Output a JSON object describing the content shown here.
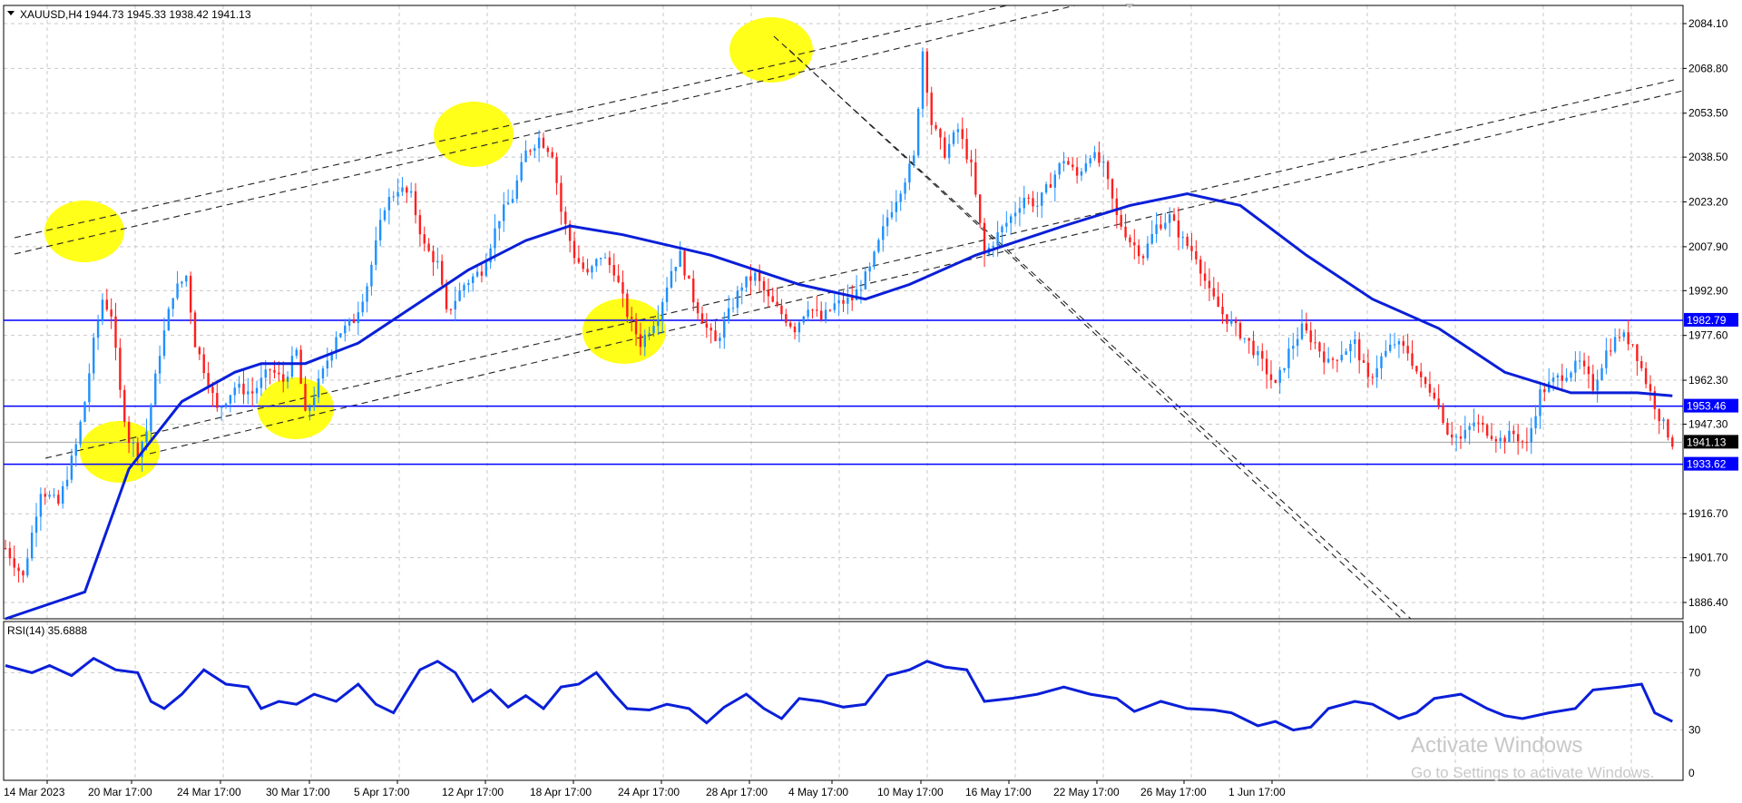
{
  "chart_data": {
    "type": "candlestick",
    "symbol_header": "XAUUSD,H4",
    "ohlc_header": "1944.73 1945.33 1938.42 1941.13",
    "ylim": [
      1880,
      2090
    ],
    "y_ticks": [
      2084.1,
      2068.8,
      2053.5,
      2038.5,
      2023.2,
      2007.9,
      1992.9,
      1977.6,
      1962.3,
      1947.3,
      1916.7,
      1901.7,
      1886.4
    ],
    "x_ticks": [
      "14 Mar 2023",
      "20 Mar 17:00",
      "24 Mar 17:00",
      "30 Mar 17:00",
      "5 Apr 17:00",
      "12 Apr 17:00",
      "18 Apr 17:00",
      "24 Apr 17:00",
      "28 Apr 17:00",
      "4 May 17:00",
      "10 May 17:00",
      "16 May 17:00",
      "22 May 17:00",
      "26 May 17:00",
      "1 Jun 17:00"
    ],
    "price_lines": [
      {
        "value": 1982.79,
        "label": "1982.79",
        "color": "#0000ff"
      },
      {
        "value": 1953.46,
        "label": "1953.46",
        "color": "#0000ff"
      },
      {
        "value": 1933.62,
        "label": "1933.62",
        "color": "#0000ff"
      }
    ],
    "current_price": {
      "value": 1941.13,
      "label": "1941.13"
    },
    "close_path": [
      [
        0,
        1905
      ],
      [
        4,
        1895
      ],
      [
        8,
        1925
      ],
      [
        12,
        1920
      ],
      [
        16,
        1940
      ],
      [
        18,
        1955
      ],
      [
        20,
        1975
      ],
      [
        22,
        1990
      ],
      [
        24,
        1985
      ],
      [
        26,
        1958
      ],
      [
        28,
        1942
      ],
      [
        30,
        1938
      ],
      [
        32,
        1945
      ],
      [
        35,
        1972
      ],
      [
        38,
        1992
      ],
      [
        41,
        1998
      ],
      [
        43,
        1975
      ],
      [
        46,
        1962
      ],
      [
        48,
        1952
      ],
      [
        52,
        1960
      ],
      [
        56,
        1958
      ],
      [
        60,
        1966
      ],
      [
        63,
        1962
      ],
      [
        66,
        1972
      ],
      [
        68,
        1950
      ],
      [
        72,
        1965
      ],
      [
        75,
        1978
      ],
      [
        77,
        1980
      ],
      [
        79,
        1983
      ],
      [
        82,
        1995
      ],
      [
        86,
        2022
      ],
      [
        89,
        2028
      ],
      [
        92,
        2025
      ],
      [
        95,
        2008
      ],
      [
        98,
        2002
      ],
      [
        100,
        1985
      ],
      [
        104,
        1995
      ],
      [
        108,
        2000
      ],
      [
        112,
        2018
      ],
      [
        115,
        2025
      ],
      [
        118,
        2040
      ],
      [
        121,
        2045
      ],
      [
        124,
        2040
      ],
      [
        126,
        2020
      ],
      [
        129,
        2005
      ],
      [
        132,
        1998
      ],
      [
        135,
        2005
      ],
      [
        138,
        2000
      ],
      [
        141,
        1985
      ],
      [
        144,
        1975
      ],
      [
        148,
        1985
      ],
      [
        151,
        2000
      ],
      [
        153,
        2005
      ],
      [
        156,
        1990
      ],
      [
        159,
        1980
      ],
      [
        161,
        1975
      ],
      [
        164,
        1985
      ],
      [
        167,
        1995
      ],
      [
        170,
        1998
      ],
      [
        173,
        1990
      ],
      [
        176,
        1985
      ],
      [
        179,
        1980
      ],
      [
        182,
        1988
      ],
      [
        185,
        1983
      ],
      [
        188,
        1988
      ],
      [
        192,
        1990
      ],
      [
        196,
        2000
      ],
      [
        200,
        2018
      ],
      [
        203,
        2028
      ],
      [
        206,
        2038
      ],
      [
        208,
        2075
      ],
      [
        210,
        2050
      ],
      [
        213,
        2040
      ],
      [
        216,
        2048
      ],
      [
        219,
        2035
      ],
      [
        222,
        2005
      ],
      [
        225,
        2012
      ],
      [
        228,
        2018
      ],
      [
        231,
        2025
      ],
      [
        234,
        2022
      ],
      [
        237,
        2030
      ],
      [
        240,
        2038
      ],
      [
        243,
        2032
      ],
      [
        246,
        2040
      ],
      [
        249,
        2035
      ],
      [
        252,
        2018
      ],
      [
        255,
        2010
      ],
      [
        258,
        2005
      ],
      [
        261,
        2015
      ],
      [
        264,
        2018
      ],
      [
        267,
        2010
      ],
      [
        270,
        2005
      ],
      [
        273,
        1992
      ],
      [
        276,
        1985
      ],
      [
        279,
        1980
      ],
      [
        282,
        1975
      ],
      [
        285,
        1968
      ],
      [
        288,
        1960
      ],
      [
        291,
        1972
      ],
      [
        294,
        1980
      ],
      [
        297,
        1975
      ],
      [
        300,
        1968
      ],
      [
        303,
        1972
      ],
      [
        306,
        1975
      ],
      [
        309,
        1962
      ],
      [
        312,
        1970
      ],
      [
        315,
        1975
      ],
      [
        318,
        1972
      ],
      [
        321,
        1962
      ],
      [
        324,
        1958
      ],
      [
        327,
        1945
      ],
      [
        330,
        1942
      ],
      [
        333,
        1948
      ],
      [
        336,
        1945
      ],
      [
        339,
        1942
      ],
      [
        342,
        1944
      ],
      [
        345,
        1940
      ],
      [
        348,
        1958
      ],
      [
        351,
        1962
      ],
      [
        354,
        1965
      ],
      [
        357,
        1968
      ],
      [
        360,
        1960
      ],
      [
        363,
        1972
      ],
      [
        366,
        1978
      ],
      [
        369,
        1975
      ],
      [
        372,
        1962
      ],
      [
        375,
        1950
      ],
      [
        378,
        1941
      ]
    ],
    "ma_path": [
      [
        0,
        1830
      ],
      [
        18,
        1890
      ],
      [
        28,
        1932
      ],
      [
        40,
        1955
      ],
      [
        52,
        1965
      ],
      [
        58,
        1968
      ],
      [
        68,
        1968
      ],
      [
        80,
        1975
      ],
      [
        95,
        1990
      ],
      [
        105,
        2000
      ],
      [
        118,
        2010
      ],
      [
        128,
        2015
      ],
      [
        140,
        2012
      ],
      [
        160,
        2005
      ],
      [
        180,
        1995
      ],
      [
        195,
        1990
      ],
      [
        205,
        1995
      ],
      [
        220,
        2005
      ],
      [
        240,
        2015
      ],
      [
        255,
        2022
      ],
      [
        268,
        2026
      ],
      [
        280,
        2022
      ],
      [
        295,
        2005
      ],
      [
        310,
        1990
      ],
      [
        325,
        1980
      ],
      [
        340,
        1965
      ],
      [
        355,
        1958
      ],
      [
        370,
        1958
      ],
      [
        378,
        1957
      ]
    ],
    "rsi": {
      "label": "RSI(14) 35.6888",
      "levels": [
        100,
        70,
        30,
        0
      ],
      "values": [
        [
          0,
          75
        ],
        [
          6,
          70
        ],
        [
          10,
          75
        ],
        [
          15,
          68
        ],
        [
          20,
          80
        ],
        [
          25,
          72
        ],
        [
          30,
          70
        ],
        [
          33,
          50
        ],
        [
          36,
          45
        ],
        [
          40,
          55
        ],
        [
          45,
          72
        ],
        [
          50,
          62
        ],
        [
          55,
          60
        ],
        [
          58,
          45
        ],
        [
          62,
          50
        ],
        [
          66,
          48
        ],
        [
          70,
          55
        ],
        [
          75,
          50
        ],
        [
          80,
          62
        ],
        [
          84,
          48
        ],
        [
          88,
          42
        ],
        [
          94,
          72
        ],
        [
          98,
          78
        ],
        [
          102,
          70
        ],
        [
          106,
          50
        ],
        [
          110,
          58
        ],
        [
          114,
          46
        ],
        [
          118,
          54
        ],
        [
          122,
          45
        ],
        [
          126,
          60
        ],
        [
          130,
          62
        ],
        [
          134,
          70
        ],
        [
          138,
          55
        ],
        [
          141,
          45
        ],
        [
          146,
          44
        ],
        [
          150,
          48
        ],
        [
          155,
          45
        ],
        [
          159,
          35
        ],
        [
          163,
          46
        ],
        [
          168,
          55
        ],
        [
          172,
          45
        ],
        [
          176,
          38
        ],
        [
          180,
          52
        ],
        [
          185,
          50
        ],
        [
          190,
          46
        ],
        [
          195,
          48
        ],
        [
          200,
          68
        ],
        [
          205,
          72
        ],
        [
          209,
          78
        ],
        [
          213,
          74
        ],
        [
          218,
          72
        ],
        [
          222,
          50
        ],
        [
          228,
          52
        ],
        [
          234,
          55
        ],
        [
          240,
          60
        ],
        [
          246,
          55
        ],
        [
          252,
          52
        ],
        [
          256,
          43
        ],
        [
          262,
          50
        ],
        [
          268,
          45
        ],
        [
          274,
          44
        ],
        [
          278,
          42
        ],
        [
          284,
          33
        ],
        [
          288,
          36
        ],
        [
          292,
          30
        ],
        [
          296,
          32
        ],
        [
          300,
          45
        ],
        [
          306,
          50
        ],
        [
          310,
          48
        ],
        [
          316,
          38
        ],
        [
          320,
          42
        ],
        [
          324,
          52
        ],
        [
          330,
          55
        ],
        [
          336,
          45
        ],
        [
          340,
          40
        ],
        [
          344,
          38
        ],
        [
          350,
          42
        ],
        [
          356,
          45
        ],
        [
          360,
          58
        ],
        [
          366,
          60
        ],
        [
          371,
          62
        ],
        [
          374,
          42
        ],
        [
          378,
          36
        ]
      ],
      "range": [
        0,
        100
      ]
    },
    "yellow_highlights": [
      "swing-low-20-mar",
      "swing-high-17-mar",
      "swing-high-12-apr",
      "swing-low-30-mar",
      "swing-low-24-apr",
      "swing-high-4-may"
    ],
    "watermark_title": "Activate Windows",
    "watermark_sub": "Go to Settings to activate Windows."
  }
}
